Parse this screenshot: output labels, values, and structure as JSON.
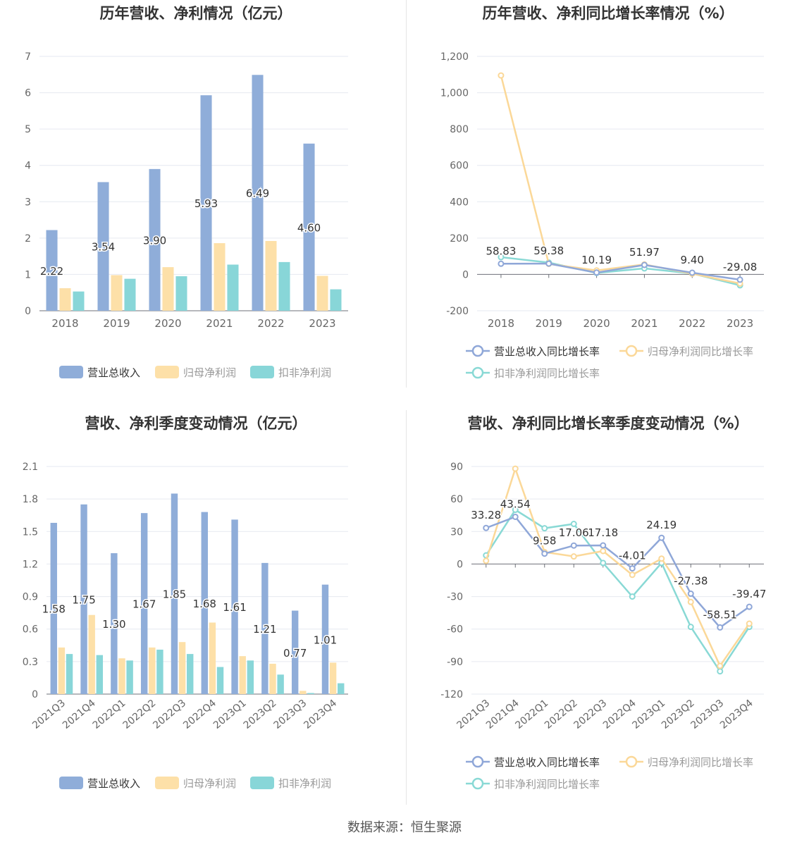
{
  "colors": {
    "revenue": "#8fadd9",
    "net_profit": "#fde0a8",
    "deducted_profit": "#88d6d8",
    "revenue_line": "#8fa7d8",
    "net_line": "#fbd898",
    "deducted_line": "#89d9d5",
    "title": "#333333",
    "axis_text": "#666666",
    "grid": "#e6e9f0",
    "zero_axis": "#6e7079"
  },
  "footer": "数据来源：恒生聚源",
  "chart_data": [
    {
      "id": "annual_amounts",
      "type": "bar",
      "title": "历年营收、净利情况（亿元）",
      "categories": [
        "2018",
        "2019",
        "2020",
        "2021",
        "2022",
        "2023"
      ],
      "ylim": [
        0,
        7
      ],
      "yticks": [
        "0",
        "1",
        "2",
        "3",
        "4",
        "5",
        "6",
        "7"
      ],
      "series": [
        {
          "name": "营业总收入",
          "values": [
            2.22,
            3.54,
            3.9,
            5.93,
            6.49,
            4.6
          ],
          "labels": [
            "2.22",
            "3.54",
            "3.90",
            "5.93",
            "6.49",
            "4.60"
          ]
        },
        {
          "name": "归母净利润",
          "values": [
            0.62,
            0.98,
            1.2,
            1.86,
            1.92,
            0.96
          ]
        },
        {
          "name": "扣非净利润",
          "values": [
            0.53,
            0.88,
            0.95,
            1.27,
            1.34,
            0.59
          ]
        }
      ]
    },
    {
      "id": "annual_growth",
      "type": "line",
      "title": "历年营收、净利同比增长率情况（%）",
      "categories": [
        "2018",
        "2019",
        "2020",
        "2021",
        "2022",
        "2023"
      ],
      "ylim": [
        -200,
        1200
      ],
      "yticks": [
        "-200",
        "0",
        "200",
        "400",
        "600",
        "800",
        "1,000",
        "1,200"
      ],
      "series": [
        {
          "name": "营业总收入同比增长率",
          "values": [
            58.83,
            59.38,
            10.19,
            51.97,
            9.4,
            -29.08
          ],
          "labels": [
            "58.83",
            "59.38",
            "10.19",
            "51.97",
            "9.40",
            "-29.08"
          ]
        },
        {
          "name": "归母净利润同比增长率",
          "values": [
            1095,
            58,
            22,
            55,
            4,
            -50
          ]
        },
        {
          "name": "扣非净利润同比增长率",
          "values": [
            95,
            65,
            8,
            33,
            5,
            -60
          ]
        }
      ]
    },
    {
      "id": "quarterly_amounts",
      "type": "bar",
      "title": "营收、净利季度变动情况（亿元）",
      "categories": [
        "2021Q3",
        "2021Q4",
        "2022Q1",
        "2022Q2",
        "2022Q3",
        "2022Q4",
        "2023Q1",
        "2023Q2",
        "2023Q3",
        "2023Q4"
      ],
      "ylim": [
        0,
        2.1
      ],
      "yticks": [
        "0",
        "0.3",
        "0.6",
        "0.9",
        "1.2",
        "1.5",
        "1.8",
        "2.1"
      ],
      "series": [
        {
          "name": "营业总收入",
          "values": [
            1.58,
            1.75,
            1.3,
            1.67,
            1.85,
            1.68,
            1.61,
            1.21,
            0.77,
            1.01
          ],
          "labels": [
            "1.58",
            "1.75",
            "1.30",
            "1.67",
            "1.85",
            "1.68",
            "1.61",
            "1.21",
            "0.77",
            "1.01"
          ]
        },
        {
          "name": "归母净利润",
          "values": [
            0.43,
            0.73,
            0.33,
            0.43,
            0.48,
            0.66,
            0.35,
            0.28,
            0.03,
            0.29
          ]
        },
        {
          "name": "扣非净利润",
          "values": [
            0.37,
            0.36,
            0.31,
            0.41,
            0.37,
            0.25,
            0.31,
            0.18,
            0.01,
            0.1
          ]
        }
      ]
    },
    {
      "id": "quarterly_growth",
      "type": "line",
      "title": "营收、净利同比增长率季度变动情况（%）",
      "categories": [
        "2021Q3",
        "2021Q4",
        "2022Q1",
        "2022Q2",
        "2022Q3",
        "2022Q4",
        "2023Q1",
        "2023Q2",
        "2023Q3",
        "2023Q4"
      ],
      "ylim": [
        -120,
        90
      ],
      "yticks": [
        "-120",
        "-90",
        "-60",
        "-30",
        "0",
        "30",
        "60",
        "90"
      ],
      "series": [
        {
          "name": "营业总收入同比增长率",
          "values": [
            33.28,
            43.54,
            9.58,
            17.06,
            17.18,
            -4.01,
            24.19,
            -27.38,
            -58.51,
            -39.47
          ],
          "labels": [
            "33.28",
            "43.54",
            "9.58",
            "17.06",
            "17.18",
            "-4.01",
            "24.19",
            "-27.38",
            "-58.51",
            "-39.47"
          ]
        },
        {
          "name": "归母净利润同比增长率",
          "values": [
            3,
            88,
            11,
            7,
            12,
            -10,
            5,
            -35,
            -94,
            -55
          ]
        },
        {
          "name": "扣非净利润同比增长率",
          "values": [
            8,
            50,
            33,
            37,
            1,
            -30,
            1,
            -58,
            -99,
            -58
          ]
        }
      ]
    }
  ]
}
